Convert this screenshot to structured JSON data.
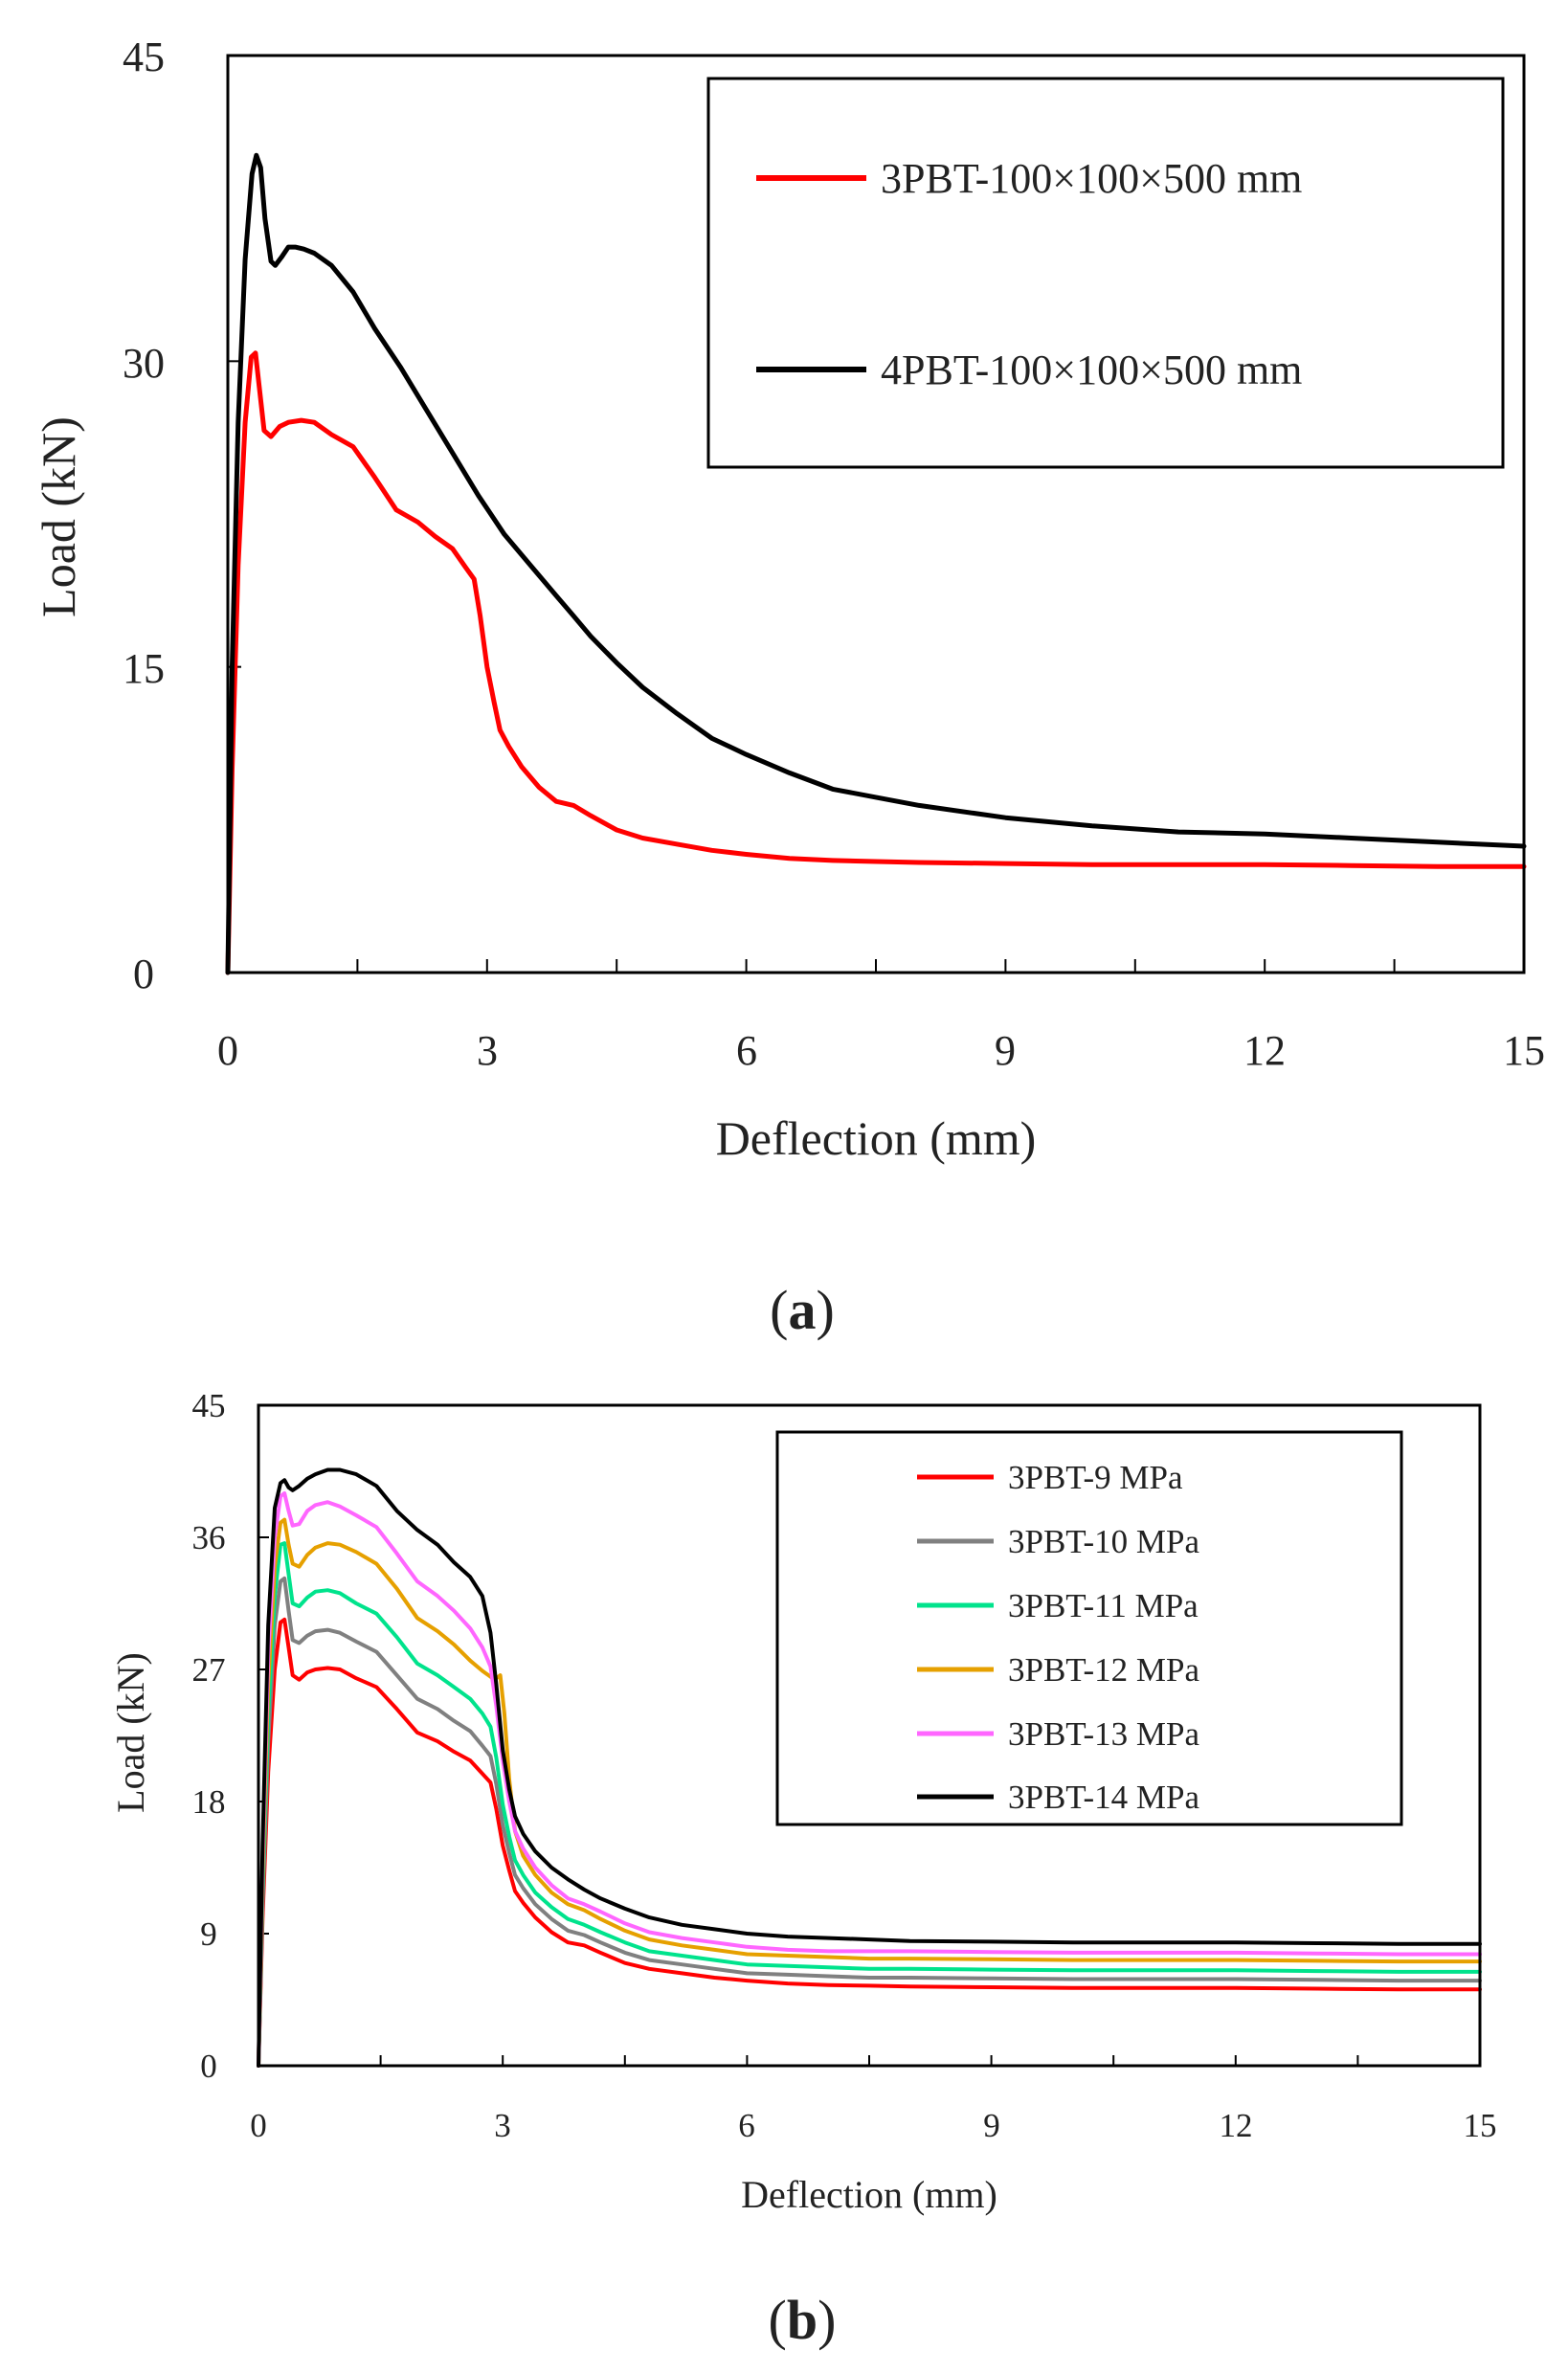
{
  "colors": {
    "red": "#ff0000",
    "black": "#000000",
    "gray": "#808080",
    "green": "#00e38c",
    "orange": "#e6a000",
    "magenta": "#ff66ff"
  },
  "chart_data": [
    {
      "id": "a",
      "type": "line",
      "panel_label": {
        "open": "(",
        "letter": "a",
        "close": ")"
      },
      "xlabel": "Deflection (mm)",
      "ylabel": "Load (kN)",
      "xlim": [
        0,
        15
      ],
      "ylim": [
        0,
        45
      ],
      "xticks": [
        0,
        3,
        6,
        9,
        12,
        15
      ],
      "yticks": [
        0,
        15,
        30,
        45
      ],
      "xtick_labels": [
        "0",
        "3",
        "6",
        "9",
        "12",
        "15"
      ],
      "ytick_labels": [
        "0",
        "15",
        "30",
        "45"
      ],
      "legend_position": "top-right",
      "series": [
        {
          "name": "3PBT-100×100×500 mm",
          "color": "#ff0000",
          "x": [
            0,
            0.05,
            0.12,
            0.2,
            0.27,
            0.32,
            0.37,
            0.42,
            0.5,
            0.6,
            0.7,
            0.85,
            1.0,
            1.2,
            1.45,
            1.7,
            1.95,
            2.2,
            2.4,
            2.6,
            2.75,
            2.85,
            2.92,
            3.0,
            3.08,
            3.15,
            3.25,
            3.4,
            3.6,
            3.8,
            4.0,
            4.2,
            4.5,
            4.8,
            5.2,
            5.6,
            6.0,
            6.5,
            7.0,
            7.5,
            8.0,
            9.0,
            10.0,
            11.0,
            12.0,
            13.0,
            14.0,
            15.0
          ],
          "y": [
            0,
            10,
            20,
            27,
            30.2,
            30.4,
            28.5,
            26.6,
            26.3,
            26.8,
            27.0,
            27.1,
            27.0,
            26.4,
            25.8,
            24.3,
            22.7,
            22.1,
            21.4,
            20.8,
            19.9,
            19.3,
            17.5,
            15.0,
            13.3,
            11.9,
            11.1,
            10.1,
            9.1,
            8.4,
            8.2,
            7.7,
            7.0,
            6.6,
            6.3,
            6.0,
            5.8,
            5.6,
            5.5,
            5.45,
            5.4,
            5.35,
            5.3,
            5.3,
            5.3,
            5.25,
            5.2,
            5.2
          ]
        },
        {
          "name": "4PBT-100×100×500 mm",
          "color": "#000000",
          "x": [
            0,
            0.05,
            0.12,
            0.2,
            0.28,
            0.33,
            0.38,
            0.43,
            0.5,
            0.55,
            0.62,
            0.7,
            0.78,
            0.88,
            1.0,
            1.2,
            1.45,
            1.7,
            2.0,
            2.3,
            2.6,
            2.9,
            3.2,
            3.5,
            3.8,
            4.0,
            4.2,
            4.5,
            4.8,
            5.2,
            5.6,
            6.0,
            6.5,
            7.0,
            7.5,
            8.0,
            9.0,
            10.0,
            11.0,
            12.0,
            13.0,
            14.0,
            15.0
          ],
          "y": [
            0,
            15,
            27,
            35,
            39.2,
            40.1,
            39.5,
            37.0,
            34.9,
            34.7,
            35.1,
            35.6,
            35.6,
            35.5,
            35.3,
            34.7,
            33.4,
            31.6,
            29.7,
            27.6,
            25.5,
            23.4,
            21.5,
            20.0,
            18.5,
            17.5,
            16.5,
            15.2,
            14.0,
            12.7,
            11.5,
            10.7,
            9.8,
            9.0,
            8.6,
            8.2,
            7.6,
            7.2,
            6.9,
            6.8,
            6.6,
            6.4,
            6.2
          ]
        }
      ]
    },
    {
      "id": "b",
      "type": "line",
      "panel_label": {
        "open": "(",
        "letter": "b",
        "close": ")"
      },
      "xlabel": "Deflection (mm)",
      "ylabel": "Load (kN)",
      "xlim": [
        0,
        15
      ],
      "ylim": [
        0,
        45
      ],
      "xticks": [
        0,
        3,
        6,
        9,
        12,
        15
      ],
      "yticks": [
        0,
        9,
        18,
        27,
        36,
        45
      ],
      "xtick_labels": [
        "0",
        "3",
        "6",
        "9",
        "12",
        "15"
      ],
      "ytick_labels": [
        "0",
        "9",
        "18",
        "27",
        "36",
        "45"
      ],
      "legend_position": "top-right",
      "series": [
        {
          "name": "3PBT-9 MPa",
          "color": "#ff0000",
          "x": [
            0,
            0.05,
            0.12,
            0.2,
            0.27,
            0.32,
            0.37,
            0.42,
            0.5,
            0.6,
            0.7,
            0.85,
            1.0,
            1.2,
            1.45,
            1.7,
            1.95,
            2.2,
            2.4,
            2.6,
            2.75,
            2.85,
            2.92,
            3.0,
            3.08,
            3.15,
            3.25,
            3.4,
            3.6,
            3.8,
            4.0,
            4.2,
            4.5,
            4.8,
            5.2,
            5.6,
            6.0,
            6.5,
            7.0,
            7.5,
            8.0,
            9.0,
            10.0,
            11.0,
            12.0,
            13.0,
            14.0,
            15.0
          ],
          "y": [
            0,
            10,
            20,
            27,
            30.2,
            30.4,
            28.5,
            26.6,
            26.3,
            26.8,
            27.0,
            27.1,
            27.0,
            26.4,
            25.8,
            24.3,
            22.7,
            22.1,
            21.4,
            20.8,
            19.9,
            19.3,
            17.5,
            15.0,
            13.3,
            11.9,
            11.1,
            10.1,
            9.1,
            8.4,
            8.2,
            7.7,
            7.0,
            6.6,
            6.3,
            6.0,
            5.8,
            5.6,
            5.5,
            5.45,
            5.4,
            5.35,
            5.3,
            5.3,
            5.3,
            5.25,
            5.2,
            5.2
          ]
        },
        {
          "name": "3PBT-10 MPa",
          "color": "#808080",
          "x": [
            0,
            0.05,
            0.12,
            0.2,
            0.27,
            0.32,
            0.37,
            0.42,
            0.5,
            0.6,
            0.7,
            0.85,
            1.0,
            1.2,
            1.45,
            1.7,
            1.95,
            2.2,
            2.4,
            2.6,
            2.75,
            2.85,
            2.92,
            3.0,
            3.08,
            3.15,
            3.25,
            3.4,
            3.6,
            3.8,
            4.0,
            4.2,
            4.5,
            4.8,
            5.2,
            5.6,
            6.0,
            6.5,
            7.0,
            7.5,
            8.0,
            9.0,
            10.0,
            11.0,
            12.0,
            13.0,
            14.0,
            15.0
          ],
          "y": [
            0,
            11,
            22,
            30,
            33.0,
            33.2,
            31.0,
            29.0,
            28.8,
            29.3,
            29.6,
            29.7,
            29.5,
            28.9,
            28.2,
            26.6,
            25.0,
            24.3,
            23.5,
            22.8,
            21.8,
            21.1,
            19.2,
            16.4,
            14.5,
            13.0,
            12.1,
            11.0,
            10.0,
            9.2,
            8.9,
            8.4,
            7.7,
            7.2,
            6.9,
            6.6,
            6.3,
            6.2,
            6.1,
            6.0,
            6.0,
            5.95,
            5.9,
            5.9,
            5.9,
            5.85,
            5.8,
            5.8
          ]
        },
        {
          "name": "3PBT-11 MPa",
          "color": "#00e38c",
          "x": [
            0,
            0.05,
            0.12,
            0.2,
            0.27,
            0.32,
            0.37,
            0.42,
            0.5,
            0.6,
            0.7,
            0.85,
            1.0,
            1.2,
            1.45,
            1.7,
            1.95,
            2.2,
            2.4,
            2.6,
            2.75,
            2.85,
            2.92,
            3.0,
            3.08,
            3.15,
            3.25,
            3.4,
            3.6,
            3.8,
            4.0,
            4.2,
            4.5,
            4.8,
            5.2,
            5.6,
            6.0,
            6.5,
            7.0,
            7.5,
            8.0,
            9.0,
            10.0,
            11.0,
            12.0,
            13.0,
            14.0,
            15.0
          ],
          "y": [
            0,
            12,
            24,
            32,
            35.5,
            35.6,
            33.5,
            31.5,
            31.3,
            31.9,
            32.3,
            32.4,
            32.2,
            31.5,
            30.8,
            29.2,
            27.4,
            26.6,
            25.8,
            25.0,
            24.0,
            23.1,
            21.0,
            17.8,
            15.6,
            14.0,
            13.0,
            11.8,
            10.8,
            10.0,
            9.6,
            9.1,
            8.4,
            7.8,
            7.5,
            7.2,
            6.9,
            6.8,
            6.7,
            6.6,
            6.6,
            6.55,
            6.5,
            6.5,
            6.5,
            6.45,
            6.4,
            6.4
          ]
        },
        {
          "name": "3PBT-12 MPa",
          "color": "#e6a000",
          "x": [
            0,
            0.05,
            0.12,
            0.2,
            0.27,
            0.32,
            0.37,
            0.42,
            0.5,
            0.6,
            0.7,
            0.85,
            1.0,
            1.2,
            1.45,
            1.7,
            1.95,
            2.2,
            2.4,
            2.6,
            2.75,
            2.9,
            2.97,
            3.02,
            3.08,
            3.15,
            3.25,
            3.4,
            3.6,
            3.8,
            4.0,
            4.2,
            4.5,
            4.8,
            5.2,
            5.6,
            6.0,
            6.5,
            7.0,
            7.5,
            8.0,
            9.0,
            10.0,
            11.0,
            12.0,
            13.0,
            14.0,
            15.0
          ],
          "y": [
            0,
            13,
            26,
            34,
            37.0,
            37.2,
            35.5,
            34.2,
            34.0,
            34.8,
            35.3,
            35.6,
            35.5,
            35.0,
            34.2,
            32.5,
            30.5,
            29.6,
            28.7,
            27.6,
            26.9,
            26.3,
            26.6,
            24.0,
            19.5,
            16.0,
            14.3,
            13.0,
            11.8,
            11.0,
            10.6,
            10.0,
            9.2,
            8.6,
            8.2,
            7.9,
            7.6,
            7.5,
            7.4,
            7.3,
            7.3,
            7.25,
            7.2,
            7.2,
            7.2,
            7.15,
            7.1,
            7.1
          ]
        },
        {
          "name": "3PBT-13 MPa",
          "color": "#ff66ff",
          "x": [
            0,
            0.05,
            0.12,
            0.2,
            0.27,
            0.32,
            0.37,
            0.42,
            0.5,
            0.6,
            0.7,
            0.85,
            1.0,
            1.2,
            1.45,
            1.7,
            1.95,
            2.2,
            2.4,
            2.6,
            2.75,
            2.85,
            2.92,
            3.0,
            3.08,
            3.15,
            3.25,
            3.4,
            3.6,
            3.8,
            4.0,
            4.2,
            4.5,
            4.8,
            5.2,
            5.6,
            6.0,
            6.5,
            7.0,
            7.5,
            8.0,
            9.0,
            10.0,
            11.0,
            12.0,
            13.0,
            14.0,
            15.0
          ],
          "y": [
            0,
            14,
            28,
            36,
            38.8,
            39.0,
            37.8,
            36.8,
            36.9,
            37.8,
            38.2,
            38.4,
            38.1,
            37.5,
            36.7,
            34.9,
            33.0,
            32.0,
            31.0,
            29.8,
            28.5,
            27.2,
            24.5,
            20.8,
            18.0,
            16.0,
            14.8,
            13.5,
            12.3,
            11.4,
            11.0,
            10.5,
            9.7,
            9.1,
            8.7,
            8.4,
            8.1,
            7.9,
            7.8,
            7.8,
            7.8,
            7.75,
            7.7,
            7.7,
            7.7,
            7.65,
            7.6,
            7.6
          ]
        },
        {
          "name": "3PBT-14 MPa",
          "color": "#000000",
          "x": [
            0,
            0.05,
            0.12,
            0.2,
            0.27,
            0.32,
            0.37,
            0.42,
            0.5,
            0.6,
            0.7,
            0.85,
            1.0,
            1.2,
            1.45,
            1.7,
            1.95,
            2.2,
            2.4,
            2.6,
            2.75,
            2.85,
            2.92,
            3.0,
            3.08,
            3.15,
            3.25,
            3.4,
            3.6,
            3.8,
            4.0,
            4.2,
            4.5,
            4.8,
            5.2,
            5.6,
            6.0,
            6.5,
            7.0,
            7.5,
            8.0,
            9.0,
            10.0,
            11.0,
            12.0,
            13.0,
            14.0,
            15.0
          ],
          "y": [
            0,
            15,
            30,
            38,
            39.7,
            39.9,
            39.4,
            39.2,
            39.5,
            40.0,
            40.3,
            40.6,
            40.6,
            40.3,
            39.5,
            37.8,
            36.5,
            35.5,
            34.3,
            33.3,
            32.0,
            29.5,
            26.0,
            21.5,
            18.8,
            17.0,
            15.8,
            14.6,
            13.5,
            12.7,
            12.0,
            11.4,
            10.7,
            10.1,
            9.6,
            9.3,
            9.0,
            8.8,
            8.7,
            8.6,
            8.5,
            8.45,
            8.4,
            8.4,
            8.4,
            8.35,
            8.3,
            8.3
          ]
        }
      ]
    }
  ]
}
